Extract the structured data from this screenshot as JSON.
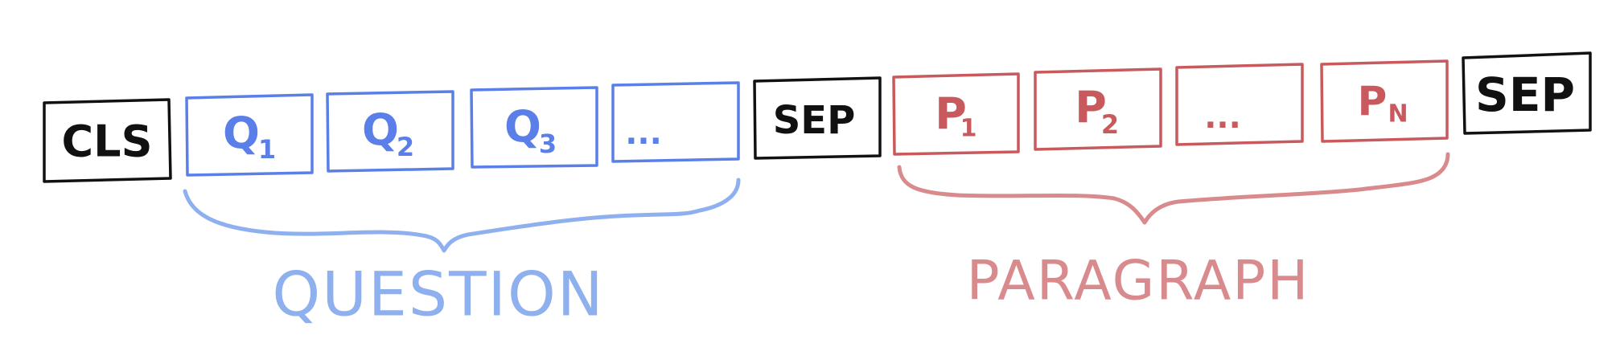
{
  "colors": {
    "special": "#111111",
    "question": "#5b7fe8",
    "question_label": "#8fb0ee",
    "paragraph": "#c85a5e",
    "paragraph_label": "#d88a8d"
  },
  "tokens": [
    {
      "id": "cls",
      "base": "CLS",
      "sub": "",
      "group": "special"
    },
    {
      "id": "q1",
      "base": "Q",
      "sub": "1",
      "group": "question"
    },
    {
      "id": "q2",
      "base": "Q",
      "sub": "2",
      "group": "question"
    },
    {
      "id": "q3",
      "base": "Q",
      "sub": "3",
      "group": "question"
    },
    {
      "id": "q-ellipsis",
      "base": "...",
      "sub": "",
      "group": "question"
    },
    {
      "id": "sep-1",
      "base": "SEP",
      "sub": "",
      "group": "special"
    },
    {
      "id": "p1",
      "base": "P",
      "sub": "1",
      "group": "paragraph"
    },
    {
      "id": "p2",
      "base": "P",
      "sub": "2",
      "group": "paragraph"
    },
    {
      "id": "p-ellipsis",
      "base": "...",
      "sub": "",
      "group": "paragraph"
    },
    {
      "id": "pn",
      "base": "P",
      "sub": "N",
      "group": "paragraph"
    },
    {
      "id": "sep-2",
      "base": "SEP",
      "sub": "",
      "group": "special"
    }
  ],
  "groups": {
    "question": {
      "label": "QUESTION"
    },
    "paragraph": {
      "label": "PARAGRAPH"
    }
  }
}
